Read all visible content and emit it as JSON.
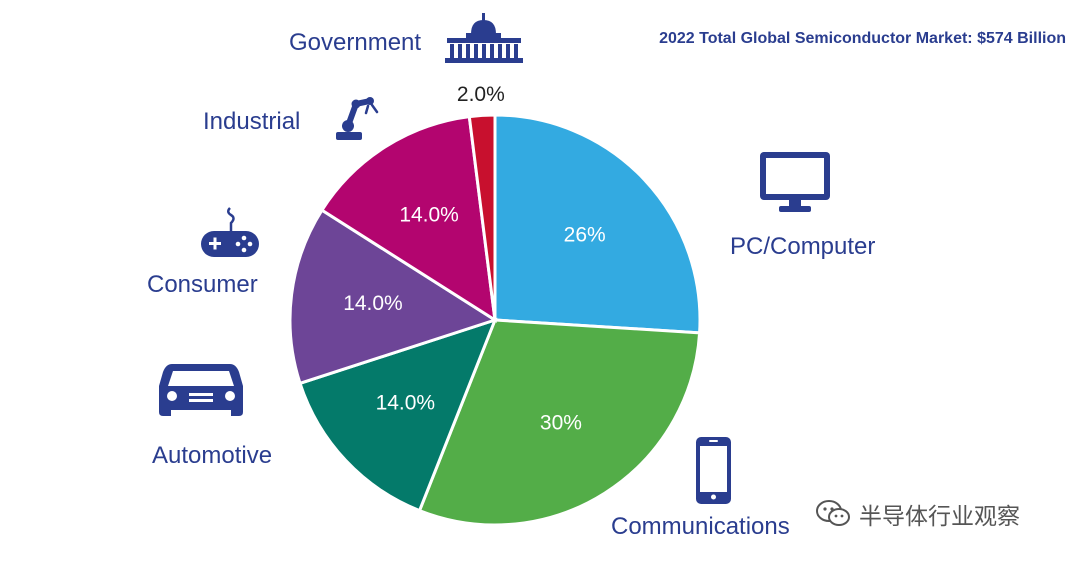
{
  "chart_data": {
    "type": "pie",
    "title": "2022 Total Global Semiconductor Market: $574 Billion",
    "series": [
      {
        "name": "PC/Computer",
        "value": 26,
        "label": "26%",
        "color": "#33aae1"
      },
      {
        "name": "Communications",
        "value": 30,
        "label": "30%",
        "color": "#53ad48"
      },
      {
        "name": "Automotive",
        "value": 14,
        "label": "14.0%",
        "color": "#047a6a"
      },
      {
        "name": "Consumer",
        "value": 14,
        "label": "14.0%",
        "color": "#6d4597"
      },
      {
        "name": "Industrial",
        "value": 14,
        "label": "14.0%",
        "color": "#b3056f"
      },
      {
        "name": "Government",
        "value": 2,
        "label": "2.0%",
        "color": "#c8102e"
      }
    ],
    "category_text_color": "#2a3d8f",
    "icon_color": "#2a3d8f",
    "icons": {
      "PC/Computer": "monitor-icon",
      "Communications": "smartphone-icon",
      "Automotive": "car-icon",
      "Consumer": "gamepad-icon",
      "Industrial": "robot-arm-icon",
      "Government": "capitol-building-icon"
    }
  },
  "watermark": {
    "text": "半导体行业观察",
    "icon": "wechat-icon"
  }
}
